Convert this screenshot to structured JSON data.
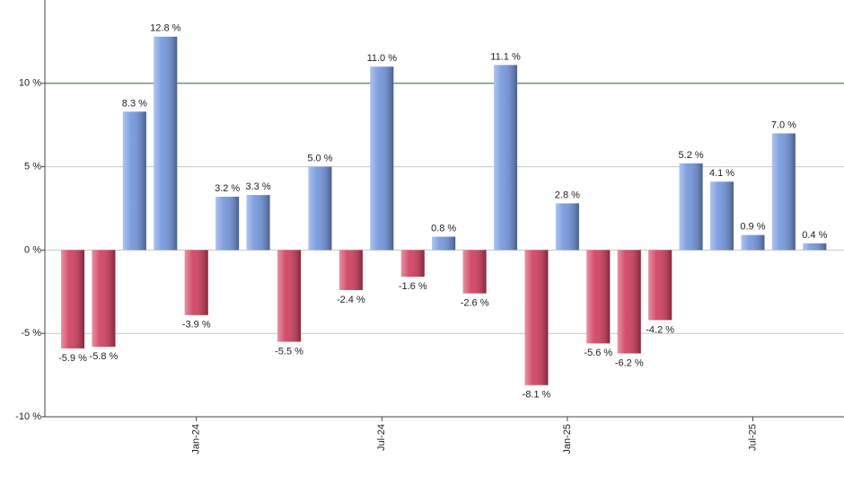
{
  "chart_data": {
    "type": "bar",
    "categories": [
      null,
      null,
      null,
      null,
      "Jan-24",
      null,
      null,
      null,
      null,
      null,
      "Jul-24",
      null,
      null,
      null,
      null,
      null,
      "Jan-25",
      null,
      null,
      null,
      null,
      null,
      "Jul-25",
      null,
      null
    ],
    "values": [
      -5.9,
      -5.8,
      8.3,
      12.8,
      -3.9,
      3.2,
      3.3,
      -5.5,
      5.0,
      -2.4,
      11.0,
      -1.6,
      0.8,
      -2.6,
      11.1,
      -8.1,
      2.8,
      -5.6,
      -6.2,
      -4.2,
      5.2,
      4.1,
      0.9,
      7.0,
      0.4
    ],
    "value_labels": [
      "-5.9 %",
      "-5.8 %",
      "8.3 %",
      "12.8 %",
      "-3.9 %",
      "3.2 %",
      "3.3 %",
      "-5.5 %",
      "5.0 %",
      "-2.4 %",
      "11.0 %",
      "-1.6 %",
      "0.8 %",
      "-2.6 %",
      "11.1 %",
      "-8.1 %",
      "2.8 %",
      "-5.6 %",
      "-6.2 %",
      "-4.2 %",
      "5.2 %",
      "4.1 %",
      "0.9 %",
      "7.0 %",
      "0.4 %"
    ],
    "positive_color": "#6f93dc",
    "negative_color": "#d03a5a",
    "ylim": [
      -10,
      15
    ],
    "yticks": [
      {
        "value": -10,
        "label": "-10 %"
      },
      {
        "value": -5,
        "label": "-5 %"
      },
      {
        "value": 0,
        "label": "0 %"
      },
      {
        "value": 5,
        "label": "5 %"
      },
      {
        "value": 10,
        "label": "10 %"
      }
    ],
    "grid": true,
    "highlight_line": {
      "value": 10,
      "color": "#2e6b2e"
    }
  }
}
